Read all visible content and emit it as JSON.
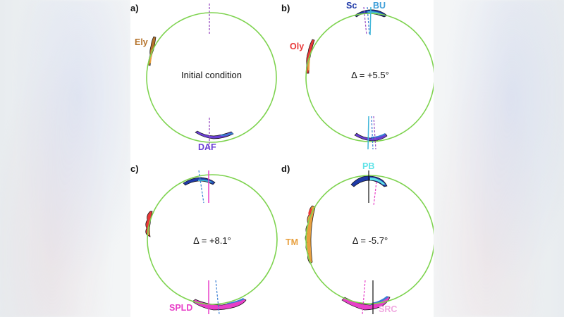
{
  "colors": {
    "circle": "#7ed34f",
    "purple_dash": "#9b4fc4",
    "cyan": "#3fb6d9",
    "blue_dash": "#3a7fd4",
    "magenta": "#e83fc8",
    "black": "#111111",
    "ely": "#b5732b",
    "oly": "#e83838",
    "sc": "#1f3aa8",
    "bu": "#3f9fd9",
    "daf": "#6a3fd4",
    "spld": "#e83fc8",
    "pb": "#5fe3e8",
    "tm": "#e8a03f",
    "src": "#f0a8e0"
  },
  "panels": [
    {
      "letter": "a)",
      "center_text": "Initial condition",
      "labels": [
        {
          "text": "Ely",
          "color_key": "ely"
        },
        {
          "text": "DAF",
          "color_key": "daf"
        }
      ]
    },
    {
      "letter": "b)",
      "center_text": "Δ = +5.5°",
      "labels": [
        {
          "text": "Sc",
          "color_key": "sc"
        },
        {
          "text": "BU",
          "color_key": "bu"
        },
        {
          "text": "Oly",
          "color_key": "oly"
        }
      ]
    },
    {
      "letter": "c)",
      "center_text": "Δ = +8.1°",
      "labels": [
        {
          "text": "SPLD",
          "color_key": "spld"
        }
      ]
    },
    {
      "letter": "d)",
      "center_text": "Δ = -5.7°",
      "labels": [
        {
          "text": "PB",
          "color_key": "pb"
        },
        {
          "text": "TM",
          "color_key": "tm"
        },
        {
          "text": "SRC",
          "color_key": "src"
        }
      ]
    }
  ]
}
